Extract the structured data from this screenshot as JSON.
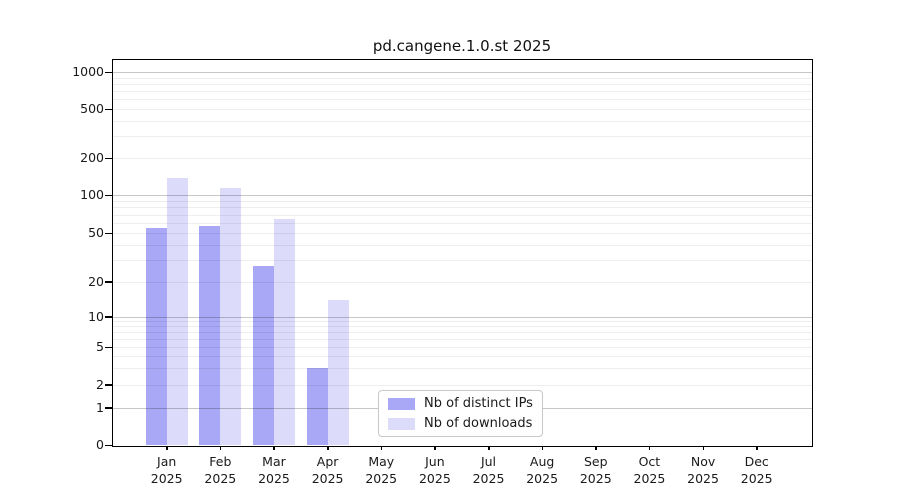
{
  "title": "pd.cangene.1.0.st 2025",
  "chart_data": {
    "type": "bar",
    "title": "pd.cangene.1.0.st 2025",
    "months": [
      "Jan",
      "Feb",
      "Mar",
      "Apr",
      "May",
      "Jun",
      "Jul",
      "Aug",
      "Sep",
      "Oct",
      "Nov",
      "Dec"
    ],
    "year_label": "2025",
    "series": [
      {
        "name": "Nb of distinct IPs",
        "color": "#a8a8f6",
        "values": [
          55,
          57,
          27,
          3,
          0,
          0,
          0,
          0,
          0,
          0,
          0,
          0
        ]
      },
      {
        "name": "Nb of downloads",
        "color": "#dcdcfa",
        "values": [
          137,
          115,
          64,
          14,
          0,
          0,
          0,
          0,
          0,
          0,
          0,
          0
        ]
      }
    ],
    "y_axis": {
      "scale": "quasi-log (log decades, compressed below 10, linear 0-1)",
      "ticks": [
        0,
        1,
        2,
        5,
        10,
        20,
        50,
        100,
        200,
        500,
        1000
      ],
      "tick_labels": [
        "0",
        "1",
        "2",
        "5",
        "10",
        "20",
        "50",
        "100",
        "200",
        "500",
        "1000"
      ],
      "range": [
        0,
        1000
      ]
    },
    "x_axis": {
      "tick_labels": [
        "Jan 2025",
        "Feb 2025",
        "Mar 2025",
        "Apr 2025",
        "May 2025",
        "Jun 2025",
        "Jul 2025",
        "Aug 2025",
        "Sep 2025",
        "Oct 2025",
        "Nov 2025",
        "Dec 2025"
      ]
    },
    "grid": "horizontal; major lines at 1,10,100,1000; minor lines at 2-9 multiples",
    "legend_position": "inside plot, lower middle"
  }
}
